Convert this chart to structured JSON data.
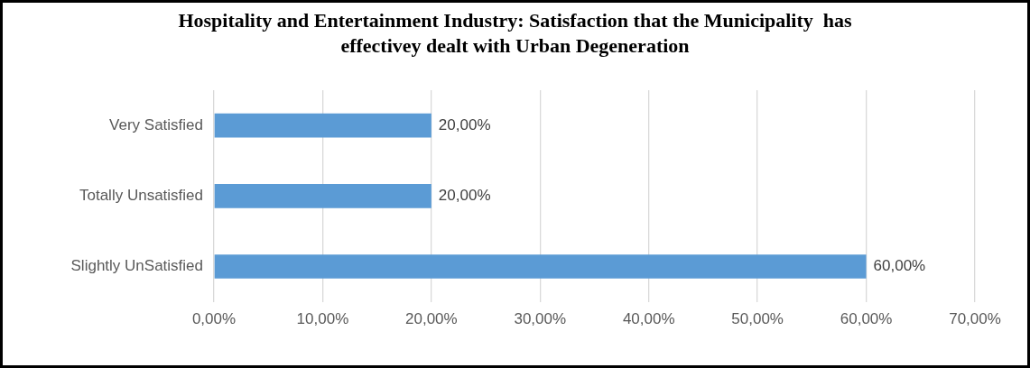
{
  "chart_data": {
    "type": "bar",
    "orientation": "horizontal",
    "title": "Hospitality and Entertainment Industry: Satisfaction that the Municipality  has effectivey dealt with Urban Degeneration",
    "categories": [
      "Very Satisfied",
      "Totally Unsatisfied",
      "Slightly UnSatisfied"
    ],
    "values": [
      20,
      20,
      60
    ],
    "value_labels": [
      "20,00%",
      "20,00%",
      "60,00%"
    ],
    "color": "#5b9bd5",
    "xlim": [
      0,
      70
    ],
    "xticks": [
      {
        "value": 0,
        "label": "0,00%"
      },
      {
        "value": 10,
        "label": "10,00%"
      },
      {
        "value": 20,
        "label": "20,00%"
      },
      {
        "value": 30,
        "label": "30,00%"
      },
      {
        "value": 40,
        "label": "40,00%"
      },
      {
        "value": 50,
        "label": "50,00%"
      },
      {
        "value": 60,
        "label": "60,00%"
      },
      {
        "value": 70,
        "label": "70,00%"
      }
    ],
    "grid": "x"
  }
}
